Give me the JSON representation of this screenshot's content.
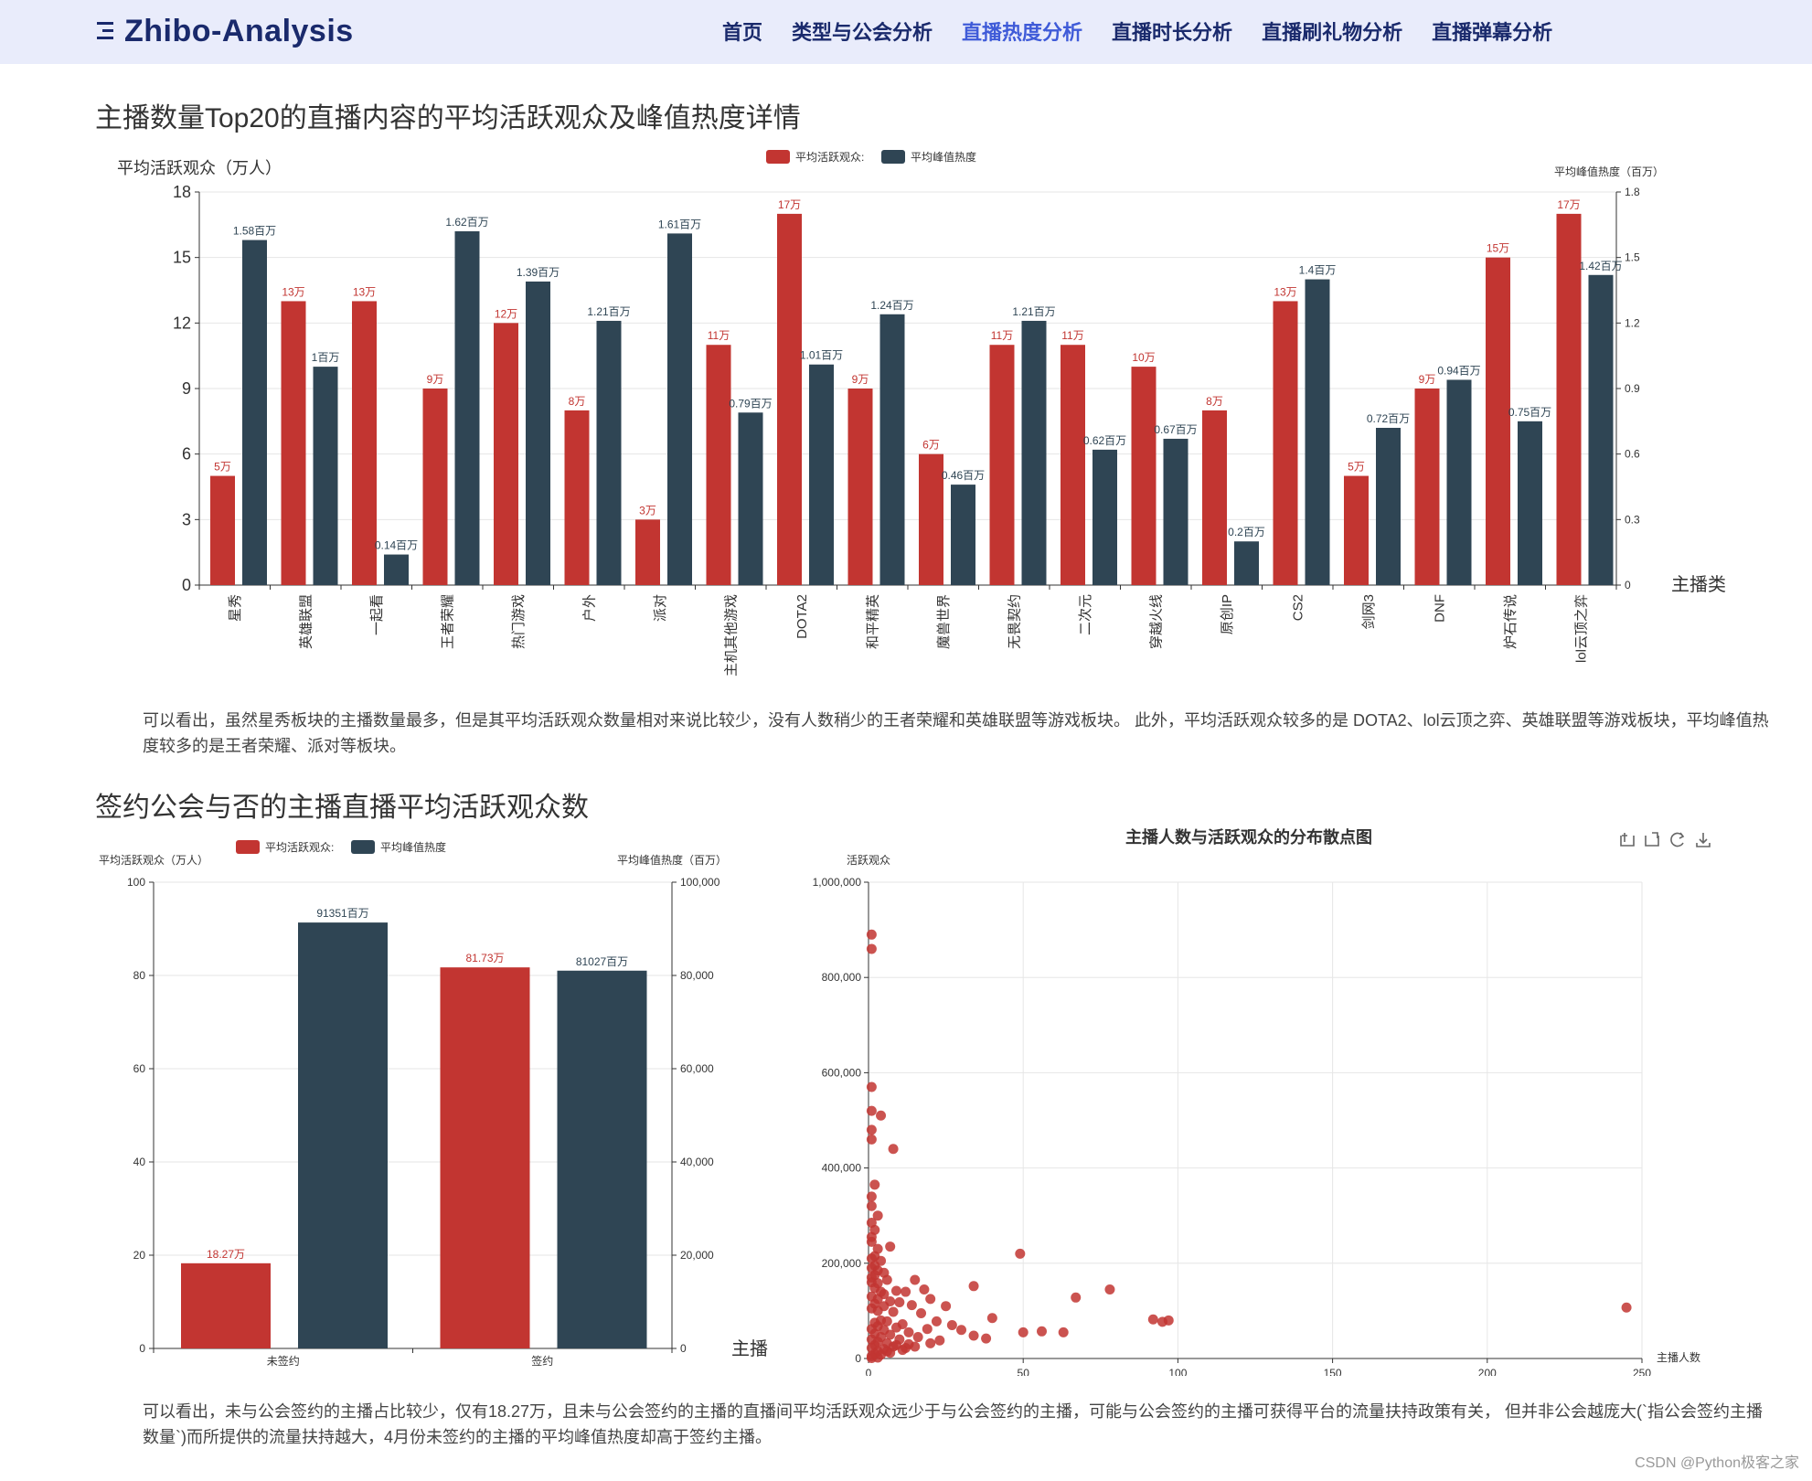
{
  "nav": {
    "brand": "Zhibo-Analysis",
    "items": [
      "首页",
      "类型与公会分析",
      "直播热度分析",
      "直播时长分析",
      "直播刷礼物分析",
      "直播弹幕分析"
    ],
    "active_index": 2
  },
  "section1": {
    "title": "主播数量Top20的直播内容的平均活跃观众及峰值热度详情",
    "paragraph": "可以看出，虽然星秀板块的主播数量最多，但是其平均活跃观众数量相对来说比较少，没有人数稍少的王者荣耀和英雄联盟等游戏板块。 此外，平均活跃观众较多的是 DOTA2、lol云顶之弈、英雄联盟等游戏板块，平均峰值热度较多的是王者荣耀、派对等板块。"
  },
  "section2": {
    "title": "签约公会与否的主播直播平均活跃观众数",
    "paragraph": "可以看出，未与公会签约的主播占比较少，仅有18.27万，且未与公会签约的主播的直播间平均活跃观众远少于与公会签约的主播，可能与公会签约的主播可获得平台的流量扶持政策有关， 但并非公会越庞大(`指公会签约主播数量`)而所提供的流量扶持越大，4月份未签约的主播的平均峰值热度却高于签约主播。"
  },
  "watermark": "CSDN @Python极客之家",
  "colors": {
    "red": "#c23531",
    "navy": "#2f4554"
  },
  "chart_data": [
    {
      "type": "bar",
      "legend": [
        "平均活跃观众:",
        "平均峰值热度"
      ],
      "ylabel_left": "平均活跃观众（万人）",
      "ylabel_right": "平均峰值热度（百万）",
      "xlabel": "主播类",
      "ylim_left": [
        0,
        18
      ],
      "ylim_right": [
        0,
        1.8
      ],
      "yticks_left": [
        "0",
        "3",
        "6",
        "9",
        "12",
        "15",
        "18"
      ],
      "yticks_right": [
        "0",
        "0.3",
        "0.6",
        "0.9",
        "1.2",
        "1.5",
        "1.8"
      ],
      "categories": [
        "星秀",
        "英雄联盟",
        "一起看",
        "王者荣耀",
        "热门游戏",
        "户外",
        "派对",
        "主机其他游戏",
        "DOTA2",
        "和平精英",
        "魔兽世界",
        "无畏契约",
        "二次元",
        "穿越火线",
        "原创IP",
        "CS2",
        "剑网3",
        "DNF",
        "炉石传说",
        "lol云顶之弈"
      ],
      "series": [
        {
          "name": "平均活跃观众:",
          "values": [
            5,
            13,
            13,
            9,
            12,
            8,
            3,
            11,
            17,
            9,
            6,
            11,
            11,
            10,
            8,
            13,
            5,
            9,
            15,
            17
          ],
          "labels": [
            "5万",
            "13万",
            "13万",
            "9万",
            "12万",
            "8万",
            "3万",
            "11万",
            "17万",
            "9万",
            "6万",
            "11万",
            "11万",
            "10万",
            "8万",
            "13万",
            "5万",
            "9万",
            "15万",
            "17万"
          ]
        },
        {
          "name": "平均峰值热度",
          "values": [
            1.58,
            1.0,
            0.14,
            1.62,
            1.39,
            1.21,
            1.61,
            0.79,
            1.01,
            1.24,
            0.46,
            1.21,
            0.62,
            0.67,
            0.2,
            1.4,
            0.72,
            0.94,
            0.75,
            1.42
          ],
          "labels": [
            "1.58百万",
            "1百万",
            "0.14百万",
            "1.62百万",
            "1.39百万",
            "1.21百万",
            "1.61百万",
            "0.79百万",
            "1.01百万",
            "1.24百万",
            "0.46百万",
            "1.21百万",
            "0.62百万",
            "0.67百万",
            "0.2百万",
            "1.4百万",
            "0.72百万",
            "0.94百万",
            "0.75百万",
            "1.42百万"
          ]
        }
      ]
    },
    {
      "type": "bar",
      "legend": [
        "平均活跃观众:",
        "平均峰值热度"
      ],
      "ylabel_left": "平均活跃观众（万人）",
      "ylabel_right": "平均峰值热度（百万）",
      "xlabel": "主播",
      "ylim_left": [
        0,
        100
      ],
      "ylim_right": [
        0,
        100000
      ],
      "yticks_left": [
        "0",
        "20",
        "40",
        "60",
        "80",
        "100"
      ],
      "yticks_right": [
        "0",
        "20,000",
        "40,000",
        "60,000",
        "80,000",
        "100,000"
      ],
      "categories": [
        "未签约",
        "签约"
      ],
      "series": [
        {
          "name": "平均活跃观众:",
          "values": [
            18.27,
            81.73
          ],
          "labels": [
            "18.27万",
            "81.73万"
          ]
        },
        {
          "name": "平均峰值热度",
          "values": [
            91351,
            81027
          ],
          "labels": [
            "91351百万",
            "81027百万"
          ]
        }
      ]
    },
    {
      "type": "scatter",
      "title": "主播人数与活跃观众的分布散点图",
      "xlabel": "主播人数",
      "ylabel": "活跃观众",
      "xlim": [
        0,
        250
      ],
      "ylim": [
        0,
        1000000
      ],
      "xticks": [
        "0",
        "50",
        "100",
        "150",
        "200",
        "250"
      ],
      "yticks": [
        "0",
        "200,000",
        "400,000",
        "600,000",
        "800,000",
        "1,000,000"
      ],
      "toolbox": [
        "zoom-icon",
        "zoom-reset-icon",
        "restore-icon",
        "download-icon"
      ],
      "points": [
        [
          1,
          890000
        ],
        [
          1,
          860000
        ],
        [
          1,
          570000
        ],
        [
          1,
          520000
        ],
        [
          4,
          510000
        ],
        [
          1,
          480000
        ],
        [
          1,
          460000
        ],
        [
          8,
          440000
        ],
        [
          2,
          365000
        ],
        [
          1,
          340000
        ],
        [
          1,
          320000
        ],
        [
          3,
          300000
        ],
        [
          1,
          285000
        ],
        [
          2,
          270000
        ],
        [
          1,
          255000
        ],
        [
          1,
          245000
        ],
        [
          3,
          230000
        ],
        [
          2,
          215000
        ],
        [
          1,
          210000
        ],
        [
          7,
          235000
        ],
        [
          49,
          220000
        ],
        [
          4,
          205000
        ],
        [
          2,
          195000
        ],
        [
          1,
          190000
        ],
        [
          3,
          185000
        ],
        [
          5,
          180000
        ],
        [
          2,
          175000
        ],
        [
          1,
          170000
        ],
        [
          6,
          165000
        ],
        [
          15,
          165000
        ],
        [
          1,
          160000
        ],
        [
          3,
          158000
        ],
        [
          34,
          152000
        ],
        [
          78,
          145000
        ],
        [
          18,
          145000
        ],
        [
          2,
          148000
        ],
        [
          4,
          140000
        ],
        [
          9,
          142000
        ],
        [
          12,
          140000
        ],
        [
          5,
          135000
        ],
        [
          1,
          130000
        ],
        [
          67,
          128000
        ],
        [
          20,
          125000
        ],
        [
          3,
          125000
        ],
        [
          7,
          120000
        ],
        [
          10,
          118000
        ],
        [
          2,
          115000
        ],
        [
          14,
          112000
        ],
        [
          5,
          110000
        ],
        [
          25,
          110000
        ],
        [
          245,
          107000
        ],
        [
          1,
          105000
        ],
        [
          3,
          100000
        ],
        [
          8,
          98000
        ],
        [
          17,
          95000
        ],
        [
          40,
          85000
        ],
        [
          92,
          82000
        ],
        [
          97,
          80000
        ],
        [
          95,
          77000
        ],
        [
          4,
          80000
        ],
        [
          6,
          78000
        ],
        [
          22,
          78000
        ],
        [
          2,
          75000
        ],
        [
          11,
          72000
        ],
        [
          27,
          70000
        ],
        [
          3,
          68000
        ],
        [
          9,
          65000
        ],
        [
          1,
          62000
        ],
        [
          19,
          62000
        ],
        [
          5,
          60000
        ],
        [
          30,
          60000
        ],
        [
          50,
          55000
        ],
        [
          56,
          57000
        ],
        [
          63,
          55000
        ],
        [
          13,
          55000
        ],
        [
          2,
          52000
        ],
        [
          7,
          50000
        ],
        [
          34,
          48000
        ],
        [
          16,
          45000
        ],
        [
          4,
          45000
        ],
        [
          38,
          42000
        ],
        [
          1,
          40000
        ],
        [
          10,
          40000
        ],
        [
          23,
          38000
        ],
        [
          3,
          35000
        ],
        [
          6,
          32000
        ],
        [
          13,
          30000
        ],
        [
          2,
          28000
        ],
        [
          8,
          25000
        ],
        [
          1,
          22000
        ],
        [
          5,
          20000
        ],
        [
          3,
          15000
        ],
        [
          11,
          18000
        ],
        [
          2,
          10000
        ],
        [
          7,
          12000
        ],
        [
          1,
          5000
        ],
        [
          4,
          8000
        ],
        [
          15,
          25000
        ],
        [
          20,
          32000
        ],
        [
          9,
          28000
        ],
        [
          12,
          22000
        ],
        [
          6,
          15000
        ],
        [
          3,
          2000
        ],
        [
          1,
          1000
        ]
      ]
    }
  ]
}
